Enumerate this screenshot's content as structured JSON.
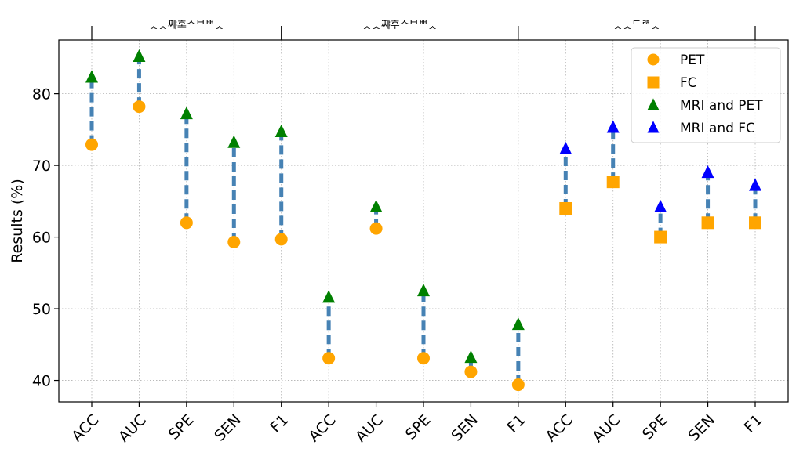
{
  "chart_data": {
    "type": "scatter",
    "ylabel": "Results (%)",
    "ylim": [
      37,
      87.5
    ],
    "yticks": [
      40,
      50,
      60,
      70,
      80
    ],
    "grid": true,
    "legend_position": "top-right",
    "categories": [
      "ACC",
      "AUC",
      "SPE",
      "SEN",
      "F1",
      "ACC",
      "AUC",
      "SPE",
      "SEN",
      "F1",
      "ACC",
      "AUC",
      "SPE",
      "SEN",
      "F1"
    ],
    "groups": [
      {
        "label": "ᆺᆺᄍᆙᄒᆂᄉᄇᄈᆺ",
        "start": 0,
        "end": 4
      },
      {
        "label": "ᆺᆺᄍᆙᄒᆍᄉᄇᄈᆺ",
        "start": 4,
        "end": 9
      },
      {
        "label": "ᆺᆺᄃᄚᆺ",
        "start": 9,
        "end": 14
      }
    ],
    "series": [
      {
        "name": "PET",
        "marker": "circle",
        "color": "#ffa500",
        "x": [
          0,
          1,
          2,
          3,
          4,
          5,
          6,
          7,
          8,
          9
        ],
        "values": [
          72.9,
          78.2,
          62.0,
          59.3,
          59.7,
          43.1,
          61.2,
          43.1,
          41.2,
          39.4
        ]
      },
      {
        "name": "FC",
        "marker": "square",
        "color": "#ffa500",
        "x": [
          10,
          11,
          12,
          13,
          14
        ],
        "values": [
          64.0,
          67.7,
          60.0,
          62.0,
          62.0
        ]
      },
      {
        "name": "MRI and PET",
        "marker": "triangle",
        "color": "#008000",
        "x": [
          0,
          1,
          2,
          3,
          4,
          5,
          6,
          7,
          8,
          9
        ],
        "values": [
          82.3,
          85.2,
          77.2,
          73.2,
          74.7,
          51.6,
          64.2,
          52.5,
          43.2,
          47.8
        ]
      },
      {
        "name": "MRI and FC",
        "marker": "triangle",
        "color": "#0000ff",
        "x": [
          10,
          11,
          12,
          13,
          14
        ],
        "values": [
          72.3,
          75.3,
          64.2,
          69.0,
          67.2
        ]
      }
    ],
    "connector_color": "#4682b4"
  }
}
